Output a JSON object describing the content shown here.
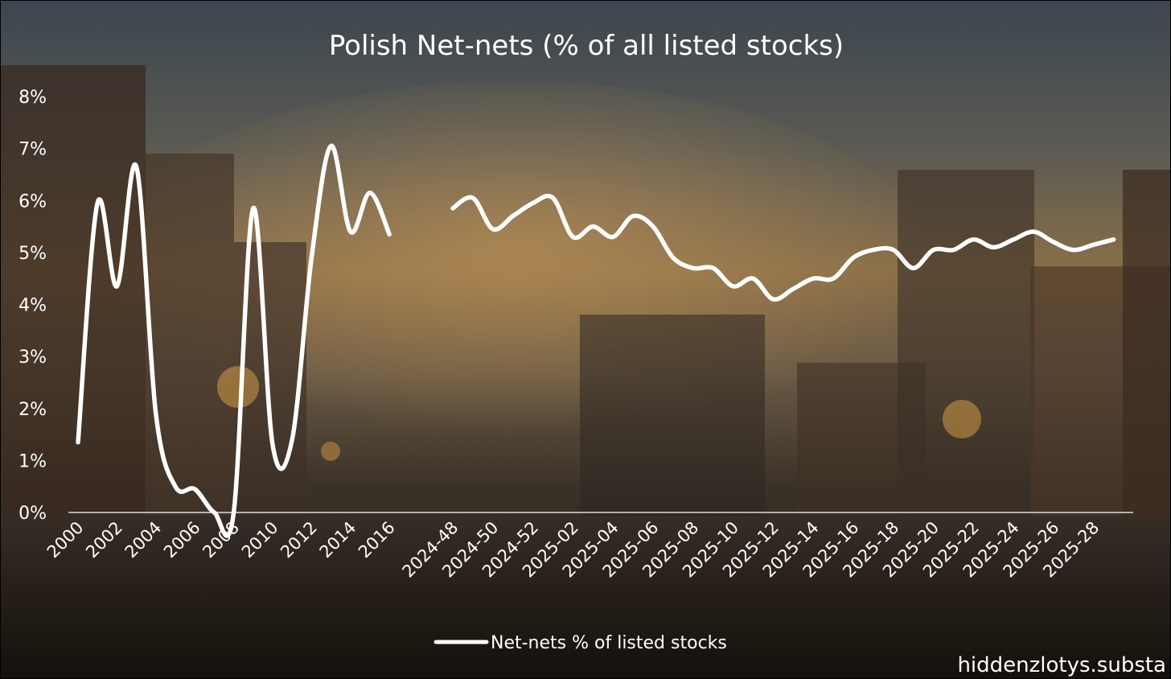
{
  "chart_data": {
    "type": "line",
    "title": "Polish Net-nets (% of all listed stocks)",
    "xlabel": "",
    "ylabel": "",
    "ylim": [
      0,
      8
    ],
    "yticks": [
      "0%",
      "1%",
      "2%",
      "3%",
      "4%",
      "5%",
      "6%",
      "7%",
      "8%"
    ],
    "grid": false,
    "legend_position": "bottom",
    "series_color": "#ffffff",
    "panels": [
      {
        "x_labels": [
          "2000",
          "2002",
          "2004",
          "2006",
          "2008",
          "2010",
          "2012",
          "2014",
          "2016"
        ],
        "x": [
          2000,
          2001,
          2002,
          2003,
          2004,
          2005,
          2006,
          2007,
          2008,
          2009,
          2010,
          2011,
          2012,
          2013,
          2014,
          2015,
          2016
        ],
        "values": [
          1.35,
          5.95,
          4.35,
          6.65,
          1.9,
          0.5,
          0.45,
          0.0,
          0.0,
          5.85,
          1.3,
          1.4,
          4.9,
          7.05,
          5.4,
          6.15,
          5.35
        ]
      },
      {
        "x_labels": [
          "2024-48",
          "2024-50",
          "2024-52",
          "2025-02",
          "2025-04",
          "2025-06",
          "2025-08",
          "2025-10",
          "2025-12",
          "2025-14",
          "2025-16",
          "2025-18",
          "2025-20",
          "2025-22",
          "2025-24",
          "2025-26",
          "2025-28"
        ],
        "x": [
          "2024-48",
          "2024-49",
          "2024-50",
          "2024-51",
          "2024-52",
          "2025-01",
          "2025-02",
          "2025-03",
          "2025-04",
          "2025-05",
          "2025-06",
          "2025-07",
          "2025-08",
          "2025-09",
          "2025-10",
          "2025-11",
          "2025-12",
          "2025-13",
          "2025-14",
          "2025-15",
          "2025-16",
          "2025-17",
          "2025-18",
          "2025-19",
          "2025-20",
          "2025-21",
          "2025-22",
          "2025-23",
          "2025-24",
          "2025-25",
          "2025-26",
          "2025-27",
          "2025-28",
          "2025-29"
        ],
        "values": [
          5.85,
          6.05,
          5.45,
          5.7,
          5.95,
          6.05,
          5.3,
          5.5,
          5.3,
          5.7,
          5.5,
          4.9,
          4.7,
          4.7,
          4.35,
          4.5,
          4.1,
          4.3,
          4.5,
          4.5,
          4.9,
          5.05,
          5.05,
          4.7,
          5.05,
          5.05,
          5.25,
          5.1,
          5.25,
          5.4,
          5.2,
          5.05,
          5.15,
          5.25
        ]
      }
    ]
  },
  "legend": {
    "label": "Net-nets % of listed stocks"
  },
  "watermark": "hiddenzlotys.substa"
}
